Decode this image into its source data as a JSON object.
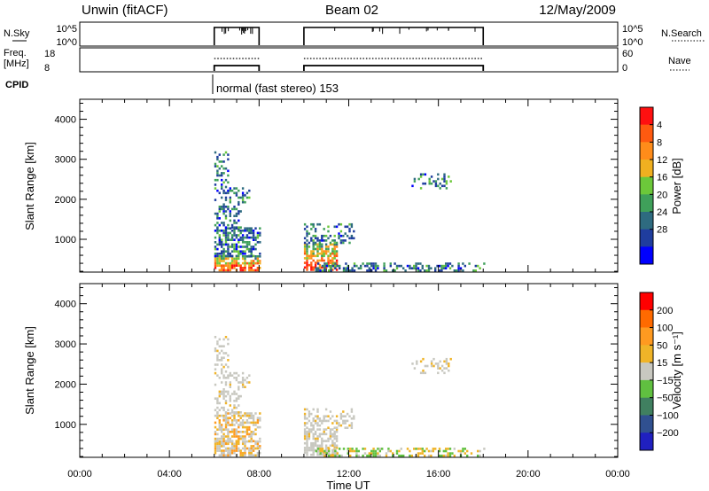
{
  "header": {
    "left": "Unwin (fitACF)",
    "center": "Beam 02",
    "right": "12/May/2009"
  },
  "status": {
    "nsky_label": "N.Sky",
    "nsky_ticks": [
      "10^5",
      "10^0"
    ],
    "nsky_right_ticks": [
      "10^5",
      "10^0"
    ],
    "nsearch_label": "N.Search",
    "freq_label_line1": "Freq.",
    "freq_label_line2": "[MHz]",
    "freq_ticks": [
      "18",
      "8"
    ],
    "nave_ticks": [
      "60",
      "0"
    ],
    "nave_label": "Nave",
    "cpid_label": "CPID",
    "cpid_text": "normal (fast stereo) 153"
  },
  "colors": {
    "power": [
      "#0000ff",
      "#1f3d9e",
      "#2e6b80",
      "#3fa05a",
      "#6cc83a",
      "#f0b020",
      "#ff8c1a",
      "#ff5a10",
      "#ff1010"
    ],
    "velocity": [
      "#ff0000",
      "#ff6a00",
      "#ff9a20",
      "#f0b428",
      "#c8c8c0",
      "#60c040",
      "#408060",
      "#305090",
      "#2020c0"
    ]
  },
  "chart_data": [
    {
      "type": "heatmap",
      "name": "power",
      "ylabel": "Slant Range [km]",
      "xlabel": "",
      "x_range_hours": [
        0,
        24
      ],
      "y_range_km": [
        180,
        4500
      ],
      "y_ticks": [
        "1000",
        "2000",
        "3000",
        "4000"
      ],
      "colorbar_label": "Power [dB]",
      "colorbar_ticks": [
        "4",
        "8",
        "12",
        "16",
        "20",
        "24",
        "28"
      ],
      "scan_intervals_hours": [
        [
          6,
          8
        ],
        [
          10,
          18
        ]
      ]
    },
    {
      "type": "heatmap",
      "name": "velocity",
      "ylabel": "Slant Range [km]",
      "xlabel": "Time UT",
      "x_range_hours": [
        0,
        24
      ],
      "y_range_km": [
        180,
        4500
      ],
      "y_ticks": [
        "1000",
        "2000",
        "3000",
        "4000"
      ],
      "x_ticks": [
        "00:00",
        "04:00",
        "08:00",
        "12:00",
        "16:00",
        "20:00",
        "00:00"
      ],
      "colorbar_label": "Velocity [m s⁻¹]",
      "colorbar_ticks": [
        "200",
        "100",
        "50",
        "15",
        "−15",
        "−50",
        "−100",
        "−200"
      ],
      "scan_intervals_hours": [
        [
          6,
          8
        ],
        [
          10,
          18
        ]
      ]
    }
  ]
}
